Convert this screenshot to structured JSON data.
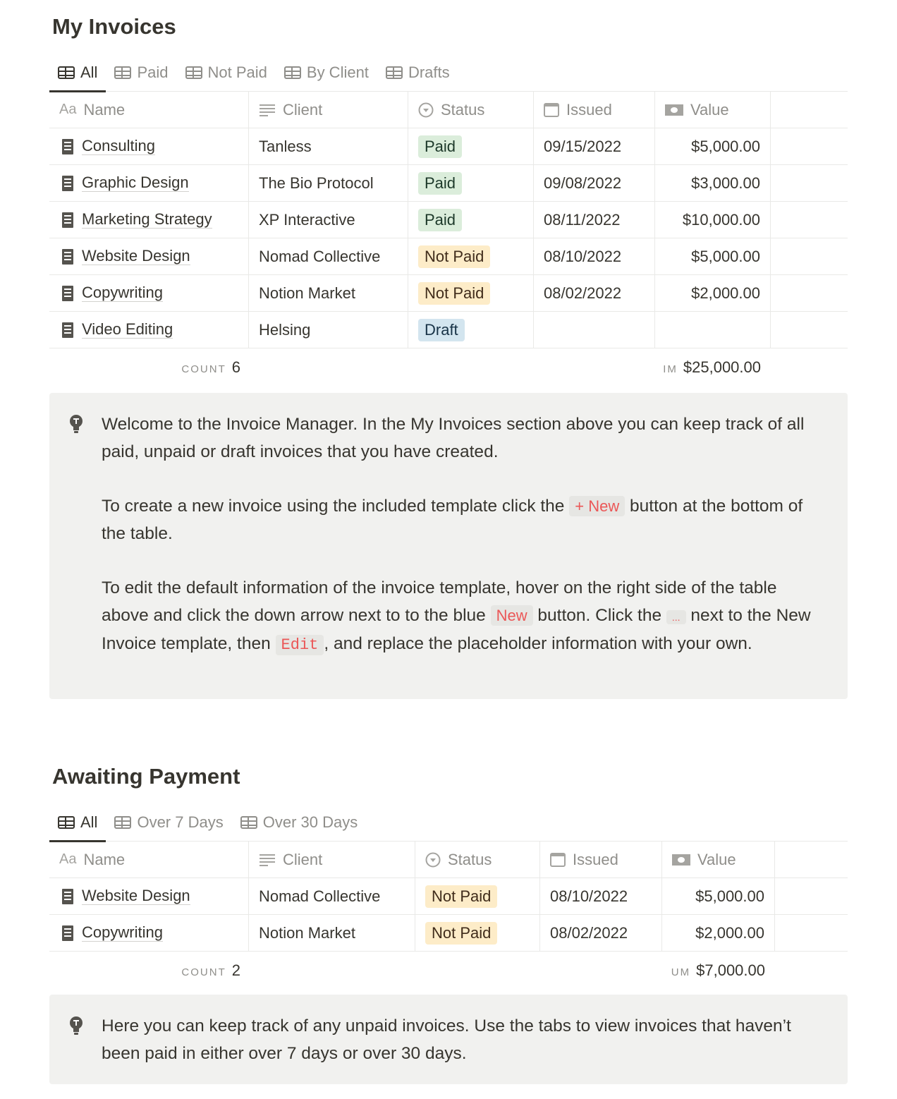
{
  "invoices": {
    "title": "My Invoices",
    "tabs": [
      {
        "label": "All",
        "active": true
      },
      {
        "label": "Paid"
      },
      {
        "label": "Not Paid"
      },
      {
        "label": "By Client"
      },
      {
        "label": "Drafts"
      }
    ],
    "columns": {
      "name": "Name",
      "client": "Client",
      "status": "Status",
      "issued": "Issued",
      "value": "Value"
    },
    "rows": [
      {
        "name": "Consulting",
        "client": "Tanless",
        "status": "Paid",
        "issued": "09/15/2022",
        "value": "$5,000.00"
      },
      {
        "name": "Graphic Design",
        "client": "The Bio Protocol",
        "status": "Paid",
        "issued": "09/08/2022",
        "value": "$3,000.00"
      },
      {
        "name": "Marketing Strategy",
        "client": "XP Interactive",
        "status": "Paid",
        "issued": "08/11/2022",
        "value": "$10,000.00"
      },
      {
        "name": "Website Design",
        "client": "Nomad Collective",
        "status": "Not Paid",
        "issued": "08/10/2022",
        "value": "$5,000.00"
      },
      {
        "name": "Copywriting",
        "client": "Notion Market",
        "status": "Not Paid",
        "issued": "08/02/2022",
        "value": "$2,000.00"
      },
      {
        "name": "Video Editing",
        "client": "Helsing",
        "status": "Draft",
        "issued": "",
        "value": ""
      }
    ],
    "footer": {
      "count_label": "COUNT",
      "count": "6",
      "sum_label": "IM",
      "sum": "$25,000.00"
    }
  },
  "callout1": {
    "p1": "Welcome to the Invoice Manager. In the My Invoices section above you can keep track of all paid, unpaid or draft invoices that you have created.",
    "p2a": "To create a new invoice using the included template click the ",
    "p2code": "+ New",
    "p2b": " button at the bottom of the table.",
    "p3a": "To edit the default information of the invoice template, hover on the right side of the table above and click the down arrow next to to the blue ",
    "p3code1": "New",
    "p3b": " button. Click the ",
    "p3code2": "...",
    "p3c": " next to the New Invoice template, then ",
    "p3code3": "Edit",
    "p3d": ", and replace the placeholder information with your own."
  },
  "awaiting": {
    "title": "Awaiting Payment",
    "tabs": [
      {
        "label": "All",
        "active": true
      },
      {
        "label": "Over 7 Days"
      },
      {
        "label": "Over 30 Days"
      }
    ],
    "columns": {
      "name": "Name",
      "client": "Client",
      "status": "Status",
      "issued": "Issued",
      "value": "Value"
    },
    "rows": [
      {
        "name": "Website Design",
        "client": "Nomad Collective",
        "status": "Not Paid",
        "issued": "08/10/2022",
        "value": "$5,000.00"
      },
      {
        "name": "Copywriting",
        "client": "Notion Market",
        "status": "Not Paid",
        "issued": "08/02/2022",
        "value": "$2,000.00"
      }
    ],
    "footer": {
      "count_label": "COUNT",
      "count": "2",
      "sum_label": "UM",
      "sum": "$7,000.00"
    }
  },
  "callout2": {
    "text": "Here you can keep track of any unpaid invoices. Use the tabs to view invoices that haven’t been paid in either over 7 days or over 30 days."
  },
  "status_colors": {
    "Paid": {
      "bg": "#dbeddb",
      "fg": "#1c3829"
    },
    "Not Paid": {
      "bg": "#fdecc8",
      "fg": "#402c1b"
    },
    "Draft": {
      "bg": "#d3e5ef",
      "fg": "#183347"
    }
  },
  "icons": {
    "tab": "table-icon",
    "name": "text-aa-icon",
    "client": "lines-icon",
    "status": "select-circle-icon",
    "issued": "calendar-icon",
    "value": "money-icon",
    "row": "receipt-icon",
    "callout": "lightbulb-icon"
  }
}
